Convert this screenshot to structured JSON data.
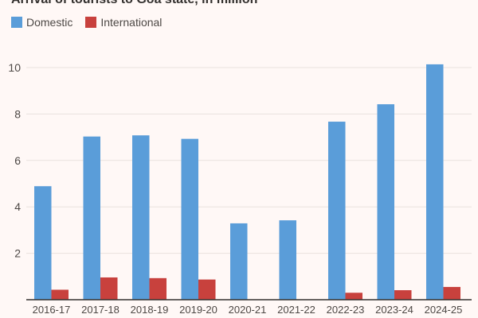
{
  "chart_data": {
    "type": "bar",
    "title": "Arrival of tourists to Goa state, in million",
    "xlabel": "",
    "ylabel": "",
    "categories": [
      "2016-17",
      "2017-18",
      "2018-19",
      "2019-20",
      "2020-21",
      "2021-22",
      "2022-23",
      "2023-24",
      "2024-25"
    ],
    "series": [
      {
        "name": "Domestic",
        "color": "#5a9dd9",
        "values": [
          4.89,
          7.03,
          7.08,
          6.93,
          3.29,
          3.42,
          7.67,
          8.42,
          10.14
        ]
      },
      {
        "name": "International",
        "color": "#c8413d",
        "values": [
          0.43,
          0.96,
          0.93,
          0.87,
          0,
          0,
          0.3,
          0.41,
          0.55
        ]
      }
    ],
    "ylim": [
      0,
      10.8
    ],
    "yticks": [
      2,
      4,
      6,
      8,
      10
    ],
    "grid": true,
    "legend": "top-left"
  }
}
